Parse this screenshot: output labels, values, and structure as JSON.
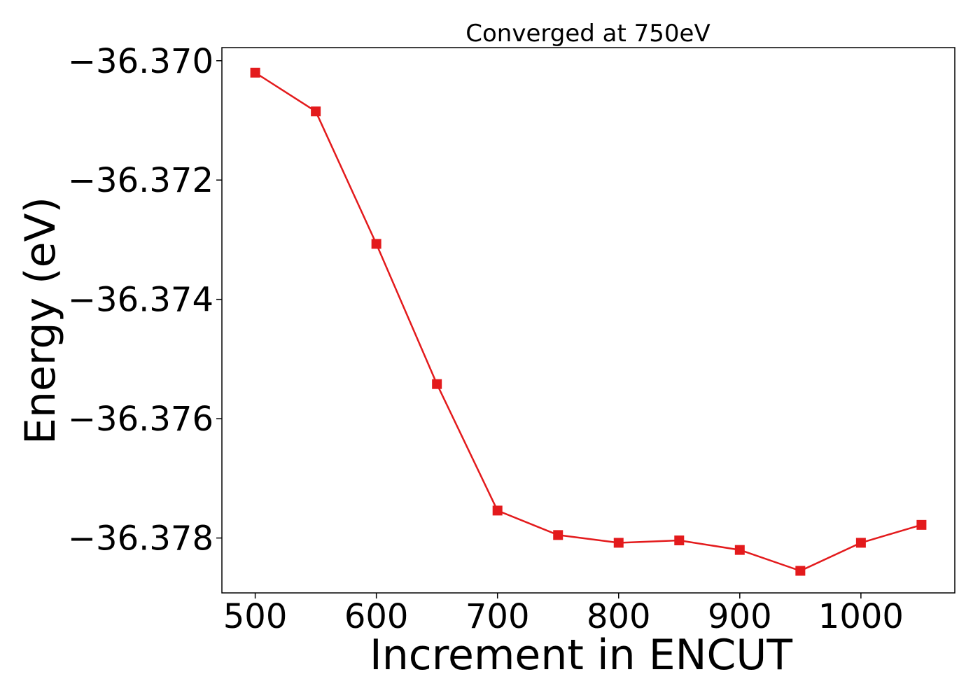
{
  "chart_data": {
    "type": "line",
    "title": "Converged at 750eV",
    "xlabel": "Increment in ENCUT",
    "ylabel": "Energy (eV)",
    "xlim": [
      472.5,
      1077.5
    ],
    "ylim": [
      -36.37892,
      -36.36978
    ],
    "xticks": [
      500,
      600,
      700,
      800,
      900,
      1000
    ],
    "xtick_labels": [
      "500",
      "600",
      "700",
      "800",
      "900",
      "1000"
    ],
    "yticks": [
      -36.37,
      -36.372,
      -36.374,
      -36.376,
      -36.378
    ],
    "ytick_labels": [
      "−36.370",
      "−36.372",
      "−36.374",
      "−36.376",
      "−36.378"
    ],
    "grid": false,
    "series": [
      {
        "color": "#e31a1c",
        "marker": "square",
        "x": [
          500,
          550,
          600,
          650,
          700,
          750,
          800,
          850,
          900,
          950,
          1000,
          1050
        ],
        "y": [
          -36.3702,
          -36.37085,
          -36.37307,
          -36.37542,
          -36.37754,
          -36.37795,
          -36.37808,
          -36.37804,
          -36.3782,
          -36.37855,
          -36.37808,
          -36.37778
        ]
      }
    ]
  }
}
